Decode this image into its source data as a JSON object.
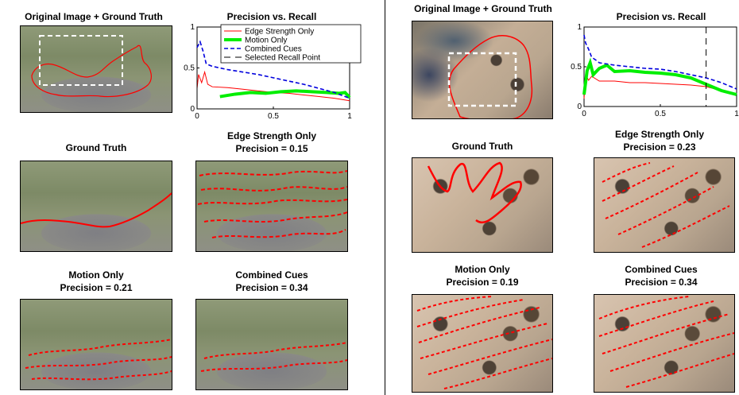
{
  "titles": {
    "left_orig": "Original Image + Ground Truth",
    "left_pr": "Precision vs. Recall",
    "left_gt": "Ground Truth",
    "left_edge": "Edge Strength Only",
    "left_edge_prec": "Precision = 0.15",
    "left_motion": "Motion Only",
    "left_motion_prec": "Precision = 0.21",
    "left_comb": "Combined Cues",
    "left_comb_prec": "Precision = 0.34",
    "right_orig": "Original Image + Ground Truth",
    "right_pr": "Precision vs. Recall",
    "right_gt": "Ground Truth",
    "right_edge": "Edge Strength Only",
    "right_edge_prec": "Precision = 0.23",
    "right_motion": "Motion Only",
    "right_motion_prec": "Precision = 0.19",
    "right_comb": "Combined Cues",
    "right_comb_prec": "Precision = 0.34"
  },
  "colors": {
    "edge": "#ff0000",
    "motion": "#00ee00",
    "combined": "#0000dd",
    "selected": "#000000"
  },
  "chart_data": [
    {
      "type": "line",
      "title": "Precision vs. Recall",
      "xlabel": "",
      "ylabel": "",
      "xlim": [
        0,
        1
      ],
      "ylim": [
        0,
        1
      ],
      "xticks": [
        "0",
        "0.5",
        "1"
      ],
      "yticks": [
        "0",
        "0.5",
        "1"
      ],
      "legend_position": "top-right",
      "legend": [
        "Edge Strength Only",
        "Motion Only",
        "Combined Cues",
        "Selected Recall Point"
      ],
      "series": [
        {
          "name": "Edge Strength Only",
          "x": [
            0.0,
            0.01,
            0.03,
            0.05,
            0.07,
            0.1,
            0.2,
            0.3,
            0.4,
            0.5,
            0.6,
            0.7,
            0.8,
            0.9,
            1.0
          ],
          "y": [
            0.25,
            0.42,
            0.32,
            0.45,
            0.3,
            0.27,
            0.26,
            0.24,
            0.22,
            0.2,
            0.19,
            0.17,
            0.15,
            0.13,
            0.1
          ]
        },
        {
          "name": "Motion Only",
          "x": [
            0.15,
            0.25,
            0.35,
            0.45,
            0.55,
            0.65,
            0.75,
            0.85,
            0.93,
            0.97,
            1.0
          ],
          "y": [
            0.15,
            0.18,
            0.2,
            0.19,
            0.21,
            0.22,
            0.21,
            0.2,
            0.19,
            0.2,
            0.14
          ]
        },
        {
          "name": "Combined Cues",
          "x": [
            0.0,
            0.02,
            0.04,
            0.06,
            0.1,
            0.2,
            0.3,
            0.4,
            0.5,
            0.6,
            0.7,
            0.8,
            0.9,
            1.0
          ],
          "y": [
            0.75,
            0.82,
            0.7,
            0.55,
            0.52,
            0.48,
            0.45,
            0.42,
            0.38,
            0.34,
            0.3,
            0.25,
            0.2,
            0.13
          ]
        }
      ],
      "selected_recall": 0.0
    },
    {
      "type": "line",
      "title": "Precision vs. Recall",
      "xlabel": "",
      "ylabel": "",
      "xlim": [
        0,
        1
      ],
      "ylim": [
        0,
        1
      ],
      "xticks": [
        "0",
        "0.5",
        "1"
      ],
      "yticks": [
        "0",
        "0.5",
        "1"
      ],
      "legend": [],
      "series": [
        {
          "name": "Edge Strength Only",
          "x": [
            0.0,
            0.01,
            0.03,
            0.05,
            0.1,
            0.2,
            0.3,
            0.4,
            0.5,
            0.6,
            0.7,
            0.8,
            0.9,
            1.0
          ],
          "y": [
            0.1,
            0.4,
            0.33,
            0.38,
            0.32,
            0.32,
            0.3,
            0.3,
            0.29,
            0.28,
            0.27,
            0.25,
            0.2,
            0.15
          ]
        },
        {
          "name": "Motion Only",
          "x": [
            0.0,
            0.02,
            0.04,
            0.06,
            0.1,
            0.15,
            0.2,
            0.3,
            0.4,
            0.5,
            0.6,
            0.7,
            0.8,
            0.9,
            1.0
          ],
          "y": [
            0.15,
            0.45,
            0.55,
            0.4,
            0.48,
            0.52,
            0.44,
            0.45,
            0.43,
            0.42,
            0.4,
            0.36,
            0.28,
            0.2,
            0.15
          ]
        },
        {
          "name": "Combined Cues",
          "x": [
            0.0,
            0.01,
            0.03,
            0.05,
            0.08,
            0.1,
            0.2,
            0.3,
            0.4,
            0.5,
            0.6,
            0.7,
            0.8,
            0.9,
            1.0
          ],
          "y": [
            0.9,
            0.8,
            0.72,
            0.62,
            0.58,
            0.55,
            0.52,
            0.5,
            0.48,
            0.47,
            0.44,
            0.4,
            0.36,
            0.3,
            0.22
          ]
        }
      ],
      "selected_recall": 0.8
    }
  ]
}
